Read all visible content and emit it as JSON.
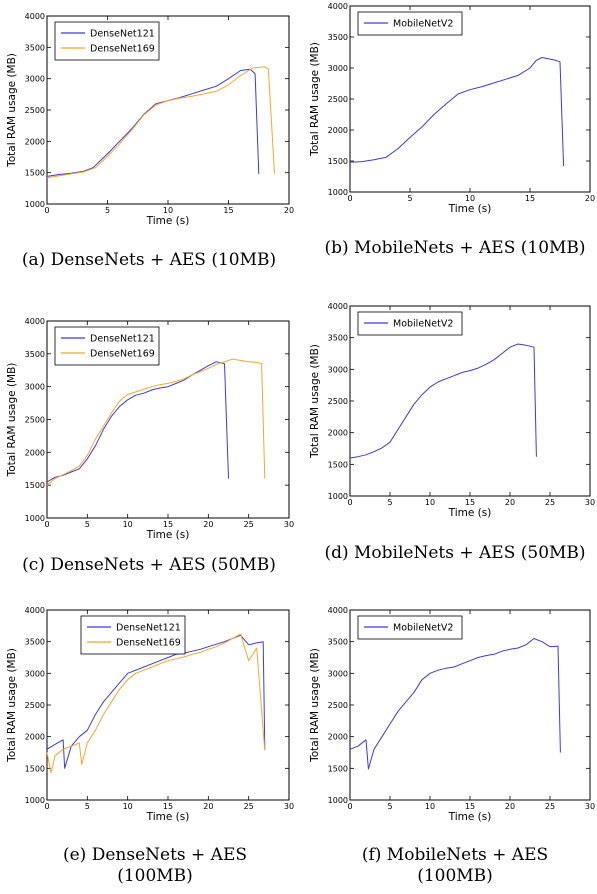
{
  "colors": {
    "densenet121": "#3b3bdc",
    "densenet169": "#f4a82a",
    "mobilenetv2": "#3b3bdc"
  },
  "chart_data": [
    {
      "type": "line",
      "caption": "(a) DenseNets + AES (10MB)",
      "xlabel": "Time (s)",
      "ylabel": "Total RAM usage (MB)",
      "xlim": [
        0,
        20
      ],
      "ylim": [
        1000,
        4000
      ],
      "xticks": [
        0,
        5,
        10,
        15,
        20
      ],
      "yticks": [
        1000,
        1500,
        2000,
        2500,
        3000,
        3500,
        4000
      ],
      "legend_position": "top-left",
      "series": [
        {
          "name": "DenseNet121",
          "color_key": "densenet121",
          "points": [
            [
              0,
              1440
            ],
            [
              1,
              1470
            ],
            [
              2,
              1490
            ],
            [
              3,
              1520
            ],
            [
              3.8,
              1580
            ],
            [
              5,
              1800
            ],
            [
              6,
              2000
            ],
            [
              7,
              2200
            ],
            [
              8,
              2430
            ],
            [
              9,
              2600
            ],
            [
              10,
              2650
            ],
            [
              11,
              2700
            ],
            [
              12,
              2760
            ],
            [
              13,
              2820
            ],
            [
              14,
              2880
            ],
            [
              15,
              3000
            ],
            [
              16,
              3130
            ],
            [
              16.8,
              3150
            ],
            [
              17.2,
              3080
            ],
            [
              17.5,
              1480
            ]
          ]
        },
        {
          "name": "DenseNet169",
          "color_key": "densenet169",
          "points": [
            [
              0,
              1420
            ],
            [
              1,
              1450
            ],
            [
              2,
              1480
            ],
            [
              3,
              1510
            ],
            [
              4,
              1580
            ],
            [
              5,
              1760
            ],
            [
              6,
              1960
            ],
            [
              7,
              2180
            ],
            [
              8,
              2420
            ],
            [
              9,
              2580
            ],
            [
              10,
              2650
            ],
            [
              11,
              2690
            ],
            [
              12,
              2720
            ],
            [
              13,
              2760
            ],
            [
              14,
              2800
            ],
            [
              15,
              2900
            ],
            [
              16,
              3050
            ],
            [
              17,
              3170
            ],
            [
              18,
              3190
            ],
            [
              18.3,
              3150
            ],
            [
              18.8,
              1480
            ]
          ]
        }
      ]
    },
    {
      "type": "line",
      "caption": "(b) MobileNets + AES (10MB)",
      "xlabel": "Time (s)",
      "ylabel": "Total RAM usage (MB)",
      "xlim": [
        0,
        20
      ],
      "ylim": [
        1000,
        4000
      ],
      "xticks": [
        0,
        5,
        10,
        15,
        20
      ],
      "yticks": [
        1000,
        1500,
        2000,
        2500,
        3000,
        3500,
        4000
      ],
      "legend_position": "top-left",
      "series": [
        {
          "name": "MobileNetV2",
          "color_key": "mobilenetv2",
          "points": [
            [
              0,
              1480
            ],
            [
              1,
              1490
            ],
            [
              2,
              1520
            ],
            [
              3,
              1560
            ],
            [
              4,
              1700
            ],
            [
              5,
              1880
            ],
            [
              6,
              2050
            ],
            [
              7,
              2250
            ],
            [
              8,
              2420
            ],
            [
              9,
              2580
            ],
            [
              10,
              2650
            ],
            [
              11,
              2700
            ],
            [
              12,
              2760
            ],
            [
              13,
              2820
            ],
            [
              14,
              2880
            ],
            [
              15,
              3000
            ],
            [
              15.5,
              3120
            ],
            [
              16,
              3170
            ],
            [
              17,
              3130
            ],
            [
              17.5,
              3100
            ],
            [
              17.8,
              1420
            ]
          ]
        }
      ]
    },
    {
      "type": "line",
      "caption": "(c) DenseNets + AES (50MB)",
      "xlabel": "Time (s)",
      "ylabel": "Total RAM usage (MB)",
      "xlim": [
        0,
        30
      ],
      "ylim": [
        1000,
        4000
      ],
      "xticks": [
        0,
        5,
        10,
        15,
        20,
        25,
        30
      ],
      "yticks": [
        1000,
        1500,
        2000,
        2500,
        3000,
        3500,
        4000
      ],
      "legend_position": "top-left",
      "series": [
        {
          "name": "DenseNet121",
          "color_key": "densenet121",
          "points": [
            [
              0,
              1550
            ],
            [
              1,
              1620
            ],
            [
              2,
              1650
            ],
            [
              3,
              1700
            ],
            [
              4,
              1750
            ],
            [
              5,
              1900
            ],
            [
              6,
              2100
            ],
            [
              7,
              2350
            ],
            [
              8,
              2550
            ],
            [
              9,
              2700
            ],
            [
              10,
              2800
            ],
            [
              11,
              2870
            ],
            [
              12,
              2900
            ],
            [
              13,
              2950
            ],
            [
              14,
              2980
            ],
            [
              15,
              3000
            ],
            [
              16,
              3050
            ],
            [
              17,
              3100
            ],
            [
              18,
              3180
            ],
            [
              19,
              3250
            ],
            [
              20,
              3320
            ],
            [
              21,
              3380
            ],
            [
              22,
              3350
            ],
            [
              22.5,
              1600
            ]
          ]
        },
        {
          "name": "DenseNet169",
          "color_key": "densenet169",
          "points": [
            [
              0,
              1500
            ],
            [
              1,
              1600
            ],
            [
              2,
              1660
            ],
            [
              3,
              1720
            ],
            [
              4,
              1790
            ],
            [
              5,
              1950
            ],
            [
              6,
              2200
            ],
            [
              7,
              2400
            ],
            [
              8,
              2600
            ],
            [
              9,
              2780
            ],
            [
              10,
              2880
            ],
            [
              11,
              2920
            ],
            [
              12,
              2960
            ],
            [
              13,
              3000
            ],
            [
              14,
              3030
            ],
            [
              15,
              3050
            ],
            [
              16,
              3080
            ],
            [
              17,
              3120
            ],
            [
              18,
              3180
            ],
            [
              19,
              3230
            ],
            [
              20,
              3280
            ],
            [
              21,
              3340
            ],
            [
              22,
              3380
            ],
            [
              23,
              3420
            ],
            [
              24,
              3400
            ],
            [
              25,
              3380
            ],
            [
              26,
              3370
            ],
            [
              26.6,
              3350
            ],
            [
              27,
              1600
            ]
          ]
        }
      ]
    },
    {
      "type": "line",
      "caption": "(d) MobileNets + AES (50MB)",
      "xlabel": "Time (s)",
      "ylabel": "Total RAM usage (MB)",
      "xlim": [
        0,
        30
      ],
      "ylim": [
        1000,
        4000
      ],
      "xticks": [
        0,
        5,
        10,
        15,
        20,
        25,
        30
      ],
      "yticks": [
        1000,
        1500,
        2000,
        2500,
        3000,
        3500,
        4000
      ],
      "legend_position": "top-left",
      "series": [
        {
          "name": "MobileNetV2",
          "color_key": "mobilenetv2",
          "points": [
            [
              0,
              1600
            ],
            [
              1,
              1620
            ],
            [
              2,
              1650
            ],
            [
              3,
              1700
            ],
            [
              4,
              1760
            ],
            [
              5,
              1850
            ],
            [
              6,
              2050
            ],
            [
              7,
              2250
            ],
            [
              8,
              2450
            ],
            [
              9,
              2600
            ],
            [
              10,
              2720
            ],
            [
              11,
              2800
            ],
            [
              12,
              2850
            ],
            [
              13,
              2900
            ],
            [
              14,
              2950
            ],
            [
              15,
              2980
            ],
            [
              16,
              3020
            ],
            [
              17,
              3080
            ],
            [
              18,
              3150
            ],
            [
              19,
              3250
            ],
            [
              20,
              3350
            ],
            [
              21,
              3400
            ],
            [
              22,
              3380
            ],
            [
              23,
              3350
            ],
            [
              23.3,
              1620
            ]
          ]
        }
      ]
    },
    {
      "type": "line",
      "caption": "(e) DenseNets + AES (100MB)",
      "xlabel": "Time (s)",
      "ylabel": "Total RAM usage (MB)",
      "xlim": [
        0,
        30
      ],
      "ylim": [
        1000,
        4000
      ],
      "xticks": [
        0,
        5,
        10,
        15,
        20,
        25,
        30
      ],
      "yticks": [
        1000,
        1500,
        2000,
        2500,
        3000,
        3500,
        4000
      ],
      "legend_position": "top-center",
      "series": [
        {
          "name": "DenseNet121",
          "color_key": "densenet121",
          "points": [
            [
              0,
              1800
            ],
            [
              1,
              1880
            ],
            [
              2,
              1950
            ],
            [
              2.2,
              1500
            ],
            [
              3,
              1850
            ],
            [
              4,
              2000
            ],
            [
              5,
              2100
            ],
            [
              6,
              2350
            ],
            [
              7,
              2550
            ],
            [
              8,
              2700
            ],
            [
              9,
              2850
            ],
            [
              10,
              3000
            ],
            [
              11,
              3050
            ],
            [
              12,
              3100
            ],
            [
              13,
              3150
            ],
            [
              14,
              3200
            ],
            [
              15,
              3250
            ],
            [
              16,
              3300
            ],
            [
              17,
              3320
            ],
            [
              18,
              3350
            ],
            [
              19,
              3380
            ],
            [
              20,
              3420
            ],
            [
              21,
              3460
            ],
            [
              22,
              3500
            ],
            [
              23,
              3550
            ],
            [
              24,
              3600
            ],
            [
              25,
              3450
            ],
            [
              26,
              3480
            ],
            [
              26.8,
              3500
            ],
            [
              27,
              1800
            ]
          ]
        },
        {
          "name": "DenseNet169",
          "color_key": "densenet169",
          "points": [
            [
              0,
              1750
            ],
            [
              0.5,
              1430
            ],
            [
              1,
              1700
            ],
            [
              2,
              1800
            ],
            [
              3,
              1850
            ],
            [
              4,
              1900
            ],
            [
              4.3,
              1560
            ],
            [
              5,
              1900
            ],
            [
              6,
              2100
            ],
            [
              7,
              2350
            ],
            [
              8,
              2550
            ],
            [
              9,
              2750
            ],
            [
              10,
              2900
            ],
            [
              11,
              3000
            ],
            [
              12,
              3050
            ],
            [
              13,
              3100
            ],
            [
              14,
              3150
            ],
            [
              15,
              3200
            ],
            [
              16,
              3230
            ],
            [
              17,
              3260
            ],
            [
              18,
              3300
            ],
            [
              19,
              3330
            ],
            [
              20,
              3380
            ],
            [
              21,
              3420
            ],
            [
              22,
              3480
            ],
            [
              23,
              3550
            ],
            [
              24,
              3620
            ],
            [
              25,
              3200
            ],
            [
              26,
              3400
            ],
            [
              27,
              1780
            ]
          ]
        }
      ]
    },
    {
      "type": "line",
      "caption": "(f) MobileNets + AES (100MB)",
      "xlabel": "Time (s)",
      "ylabel": "Total RAM usage (MB)",
      "xlim": [
        0,
        30
      ],
      "ylim": [
        1000,
        4000
      ],
      "xticks": [
        0,
        5,
        10,
        15,
        20,
        25,
        30
      ],
      "yticks": [
        1000,
        1500,
        2000,
        2500,
        3000,
        3500,
        4000
      ],
      "legend_position": "top-left",
      "series": [
        {
          "name": "MobileNetV2",
          "color_key": "mobilenetv2",
          "points": [
            [
              0,
              1800
            ],
            [
              1,
              1850
            ],
            [
              2,
              1950
            ],
            [
              2.3,
              1490
            ],
            [
              3,
              1800
            ],
            [
              4,
              2000
            ],
            [
              5,
              2200
            ],
            [
              6,
              2400
            ],
            [
              7,
              2550
            ],
            [
              8,
              2700
            ],
            [
              9,
              2900
            ],
            [
              10,
              3000
            ],
            [
              11,
              3050
            ],
            [
              12,
              3080
            ],
            [
              13,
              3100
            ],
            [
              14,
              3150
            ],
            [
              15,
              3200
            ],
            [
              16,
              3250
            ],
            [
              17,
              3280
            ],
            [
              18,
              3300
            ],
            [
              19,
              3350
            ],
            [
              20,
              3380
            ],
            [
              21,
              3400
            ],
            [
              22,
              3450
            ],
            [
              23,
              3550
            ],
            [
              24,
              3500
            ],
            [
              25,
              3420
            ],
            [
              26,
              3430
            ],
            [
              26.3,
              1750
            ]
          ]
        }
      ]
    }
  ]
}
